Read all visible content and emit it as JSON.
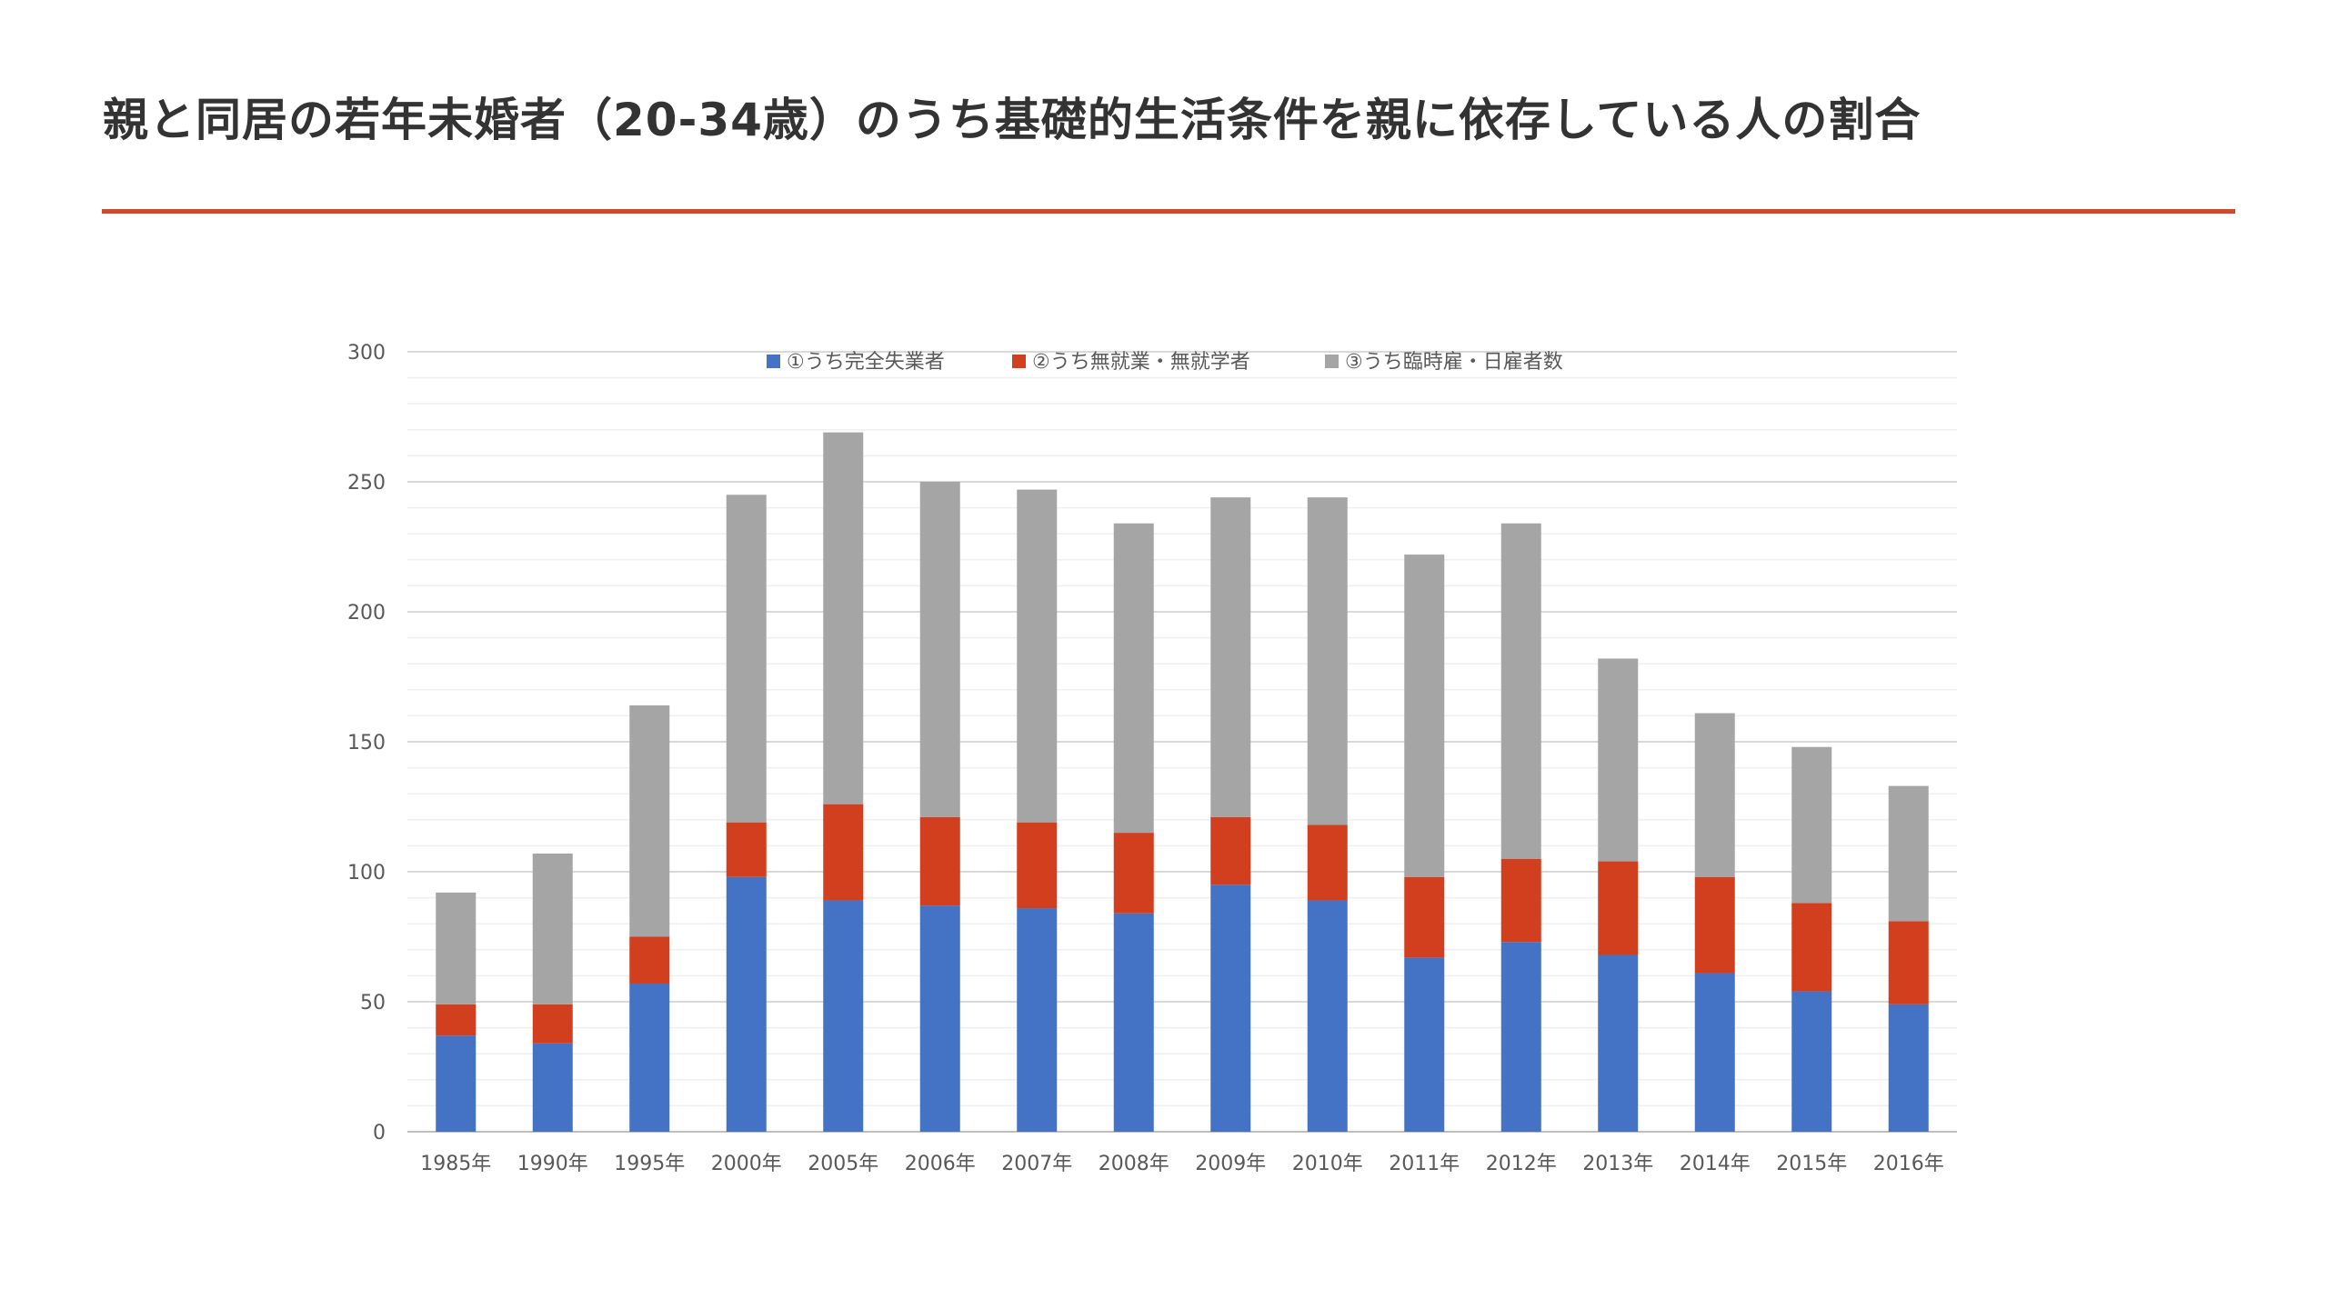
{
  "slide": {
    "title": "親と同居の若年未婚者（20-34歳）のうち基礎的生活条件を親に依存している人の割合",
    "accent_color": "#d04a2b",
    "title_color": "#333333"
  },
  "chart_data": {
    "type": "bar",
    "stacked": true,
    "title": "",
    "xlabel": "",
    "ylabel": "",
    "ylim": [
      0,
      300
    ],
    "yticks": [
      0,
      50,
      100,
      150,
      200,
      250,
      300
    ],
    "grid": true,
    "legend_position": "top",
    "categories": [
      "1985年",
      "1990年",
      "1995年",
      "2000年",
      "2005年",
      "2006年",
      "2007年",
      "2008年",
      "2009年",
      "2010年",
      "2011年",
      "2012年",
      "2013年",
      "2014年",
      "2015年",
      "2016年"
    ],
    "series": [
      {
        "name": "①うち完全失業者",
        "color": "#4472c4",
        "values": [
          37,
          34,
          57,
          98,
          89,
          87,
          86,
          84,
          95,
          89,
          67,
          73,
          68,
          61,
          54,
          49
        ]
      },
      {
        "name": "②うち無就業・無就学者",
        "color": "#d13f1e",
        "values": [
          12,
          15,
          18,
          21,
          37,
          34,
          33,
          31,
          26,
          29,
          31,
          32,
          36,
          37,
          34,
          32
        ]
      },
      {
        "name": "③うち臨時雇・日雇者数",
        "color": "#a5a5a5",
        "values": [
          43,
          58,
          89,
          126,
          143,
          129,
          128,
          119,
          123,
          126,
          124,
          129,
          78,
          63,
          60,
          52
        ]
      }
    ]
  }
}
